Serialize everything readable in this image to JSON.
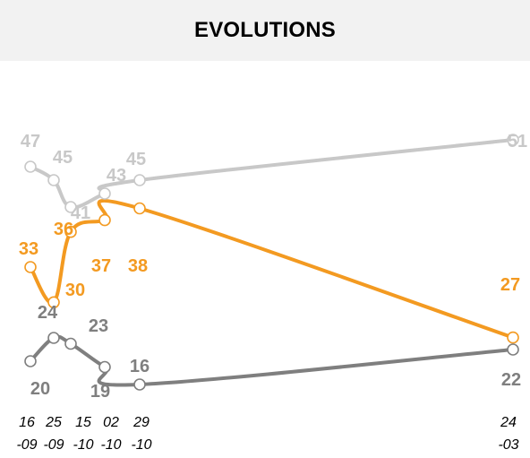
{
  "title": "EVOLUTIONS",
  "chart_data": {
    "type": "line",
    "title": "EVOLUTIONS",
    "x": [
      "16-09",
      "25-09",
      "15-10",
      "02-10",
      "29-10",
      "24-03"
    ],
    "x_tick_lines": [
      [
        "16",
        "-09"
      ],
      [
        "25",
        "-09"
      ],
      [
        "15",
        "-10"
      ],
      [
        "02",
        "-10"
      ],
      [
        "29",
        "-10"
      ],
      [
        "24",
        "-03"
      ]
    ],
    "series": [
      {
        "color": "#c8c8c8",
        "values": [
          47,
          45,
          41,
          43,
          45,
          51
        ]
      },
      {
        "color": "#f39a21",
        "values": [
          33,
          30,
          36,
          37,
          38,
          27
        ]
      },
      {
        "color": "#7f7f7f",
        "values": [
          20,
          24,
          23,
          19,
          16,
          22
        ]
      }
    ],
    "grid": false,
    "legend": "none"
  }
}
